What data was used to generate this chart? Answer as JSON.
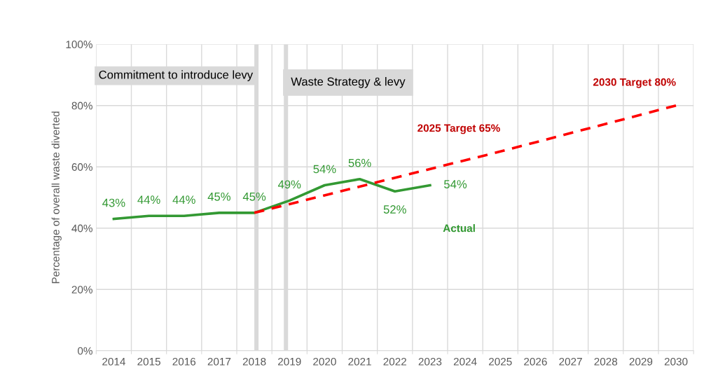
{
  "chart_data": {
    "type": "line",
    "ylabel": "Percentage of overall waste diverted",
    "xlim": [
      2013.5,
      2030.5
    ],
    "xticks": [
      {
        "value": 2013.5,
        "label": null
      },
      2014,
      {
        "value": 2014.5,
        "label": null
      },
      2015,
      {
        "value": 2015.5,
        "label": null
      },
      2016,
      {
        "value": 2016.5,
        "label": null
      },
      2017,
      {
        "value": 2017.5,
        "label": null
      },
      2018,
      {
        "value": 2018.5,
        "label": null
      },
      2019,
      {
        "value": 2019.5,
        "label": null
      },
      2020,
      {
        "value": 2020.5,
        "label": null
      },
      2021,
      {
        "value": 2021.5,
        "label": null
      },
      2022,
      {
        "value": 2022.5,
        "label": null
      },
      2023,
      {
        "value": 2023.5,
        "label": null
      },
      2024,
      {
        "value": 2024.5,
        "label": null
      },
      2025,
      {
        "value": 2025.5,
        "label": null
      },
      2026,
      {
        "value": 2026.5,
        "label": null
      },
      2027,
      {
        "value": 2027.5,
        "label": null
      },
      2028,
      {
        "value": 2028.5,
        "label": null
      },
      2029,
      {
        "value": 2029.5,
        "label": null
      },
      2030,
      {
        "value": 2030.5,
        "label": null
      }
    ],
    "ylim": [
      0,
      100
    ],
    "yticks": [
      {
        "value": 0,
        "label": "0%"
      },
      {
        "value": 20,
        "label": "20%"
      },
      {
        "value": 40,
        "label": "40%"
      },
      {
        "value": 60,
        "label": "60%"
      },
      {
        "value": 80,
        "label": "80%"
      },
      {
        "value": 100,
        "label": "100%"
      }
    ],
    "grid": true,
    "series": [
      {
        "name": "Actual",
        "color": "#339933",
        "line_style": "solid",
        "x": [
          2014,
          2015,
          2016,
          2017,
          2018,
          2019,
          2020,
          2021,
          2022,
          2023
        ],
        "values": [
          43,
          44,
          44,
          45,
          45,
          49,
          54,
          56,
          52,
          54
        ],
        "value_labels": [
          "43%",
          "44%",
          "44%",
          "45%",
          "45%",
          "49%",
          "54%",
          "56%",
          "52%",
          "54%"
        ]
      },
      {
        "color": "#ff0000",
        "line_style": "dashed",
        "x": [
          2018,
          2025,
          2030
        ],
        "values": [
          45,
          65,
          80
        ]
      }
    ],
    "bands": [
      {
        "axis": "x",
        "from": 2018.0,
        "to": 2018.12,
        "label": "Commitment to introduce levy",
        "color": "#d9d9d9"
      },
      {
        "axis": "x",
        "from": 2018.84,
        "to": 2018.96,
        "label": "Waste Strategy & levy",
        "color": "#d9d9d9"
      }
    ],
    "annotations": [
      {
        "text": "2025 Target 65%",
        "x": 2025,
        "y": 65
      },
      {
        "text": "2030 Target 80%",
        "x": 2030,
        "y": 80
      }
    ]
  }
}
